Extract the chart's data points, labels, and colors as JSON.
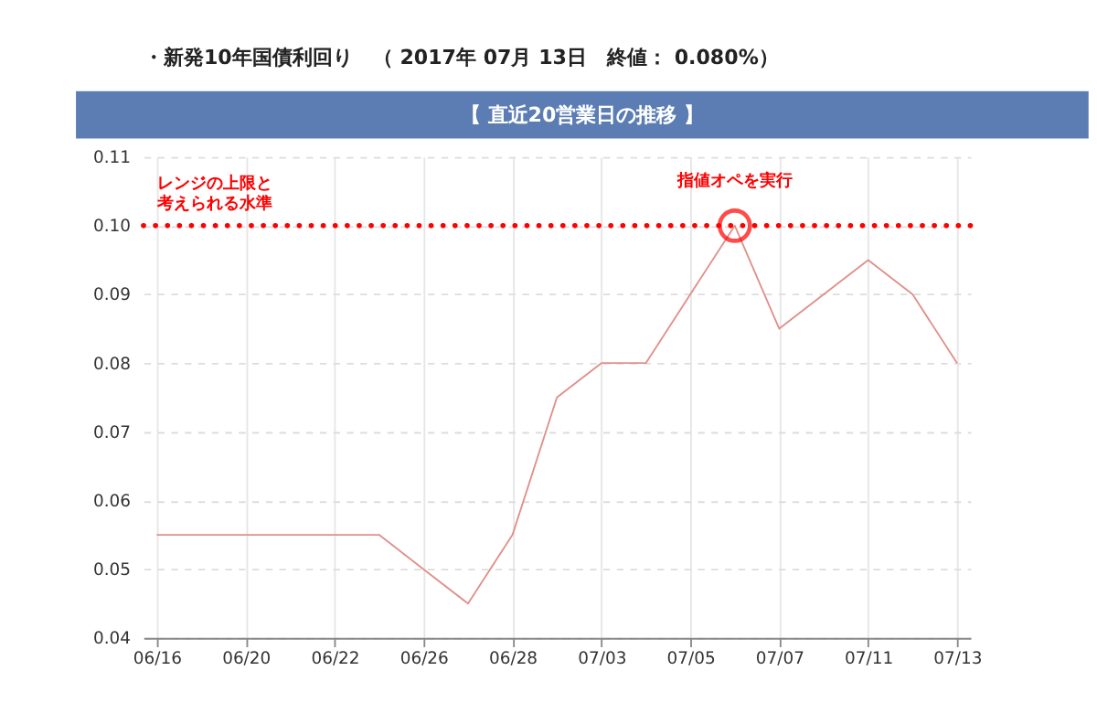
{
  "chart_data": {
    "type": "line",
    "title": "・新発10年国債利回り　（ 2017年 07月 13日　終値： 0.080%）",
    "subtitle": "【 直近20営業日の推移 】",
    "categories": [
      "06/16",
      null,
      "06/20",
      null,
      "06/22",
      null,
      "06/26",
      null,
      "06/28",
      null,
      "07/03",
      null,
      "07/05",
      null,
      "07/07",
      null,
      "07/11",
      null,
      "07/13"
    ],
    "series": [
      {
        "color": "#e0908a",
        "values": [
          0.055,
          0.055,
          0.055,
          0.055,
          0.055,
          0.055,
          0.05,
          0.045,
          0.055,
          0.075,
          0.08,
          0.08,
          0.09,
          0.1,
          0.085,
          0.09,
          0.095,
          0.09,
          0.08
        ]
      }
    ],
    "ylim": [
      0.04,
      0.11
    ],
    "yticks": [
      0.04,
      0.05,
      0.06,
      0.07,
      0.08,
      0.09,
      {
        "value": 0.1,
        "label": "0.10"
      },
      0.11
    ],
    "grid": true,
    "marker": "none",
    "line_style": "solid",
    "ref_lines": [
      {
        "axis": "y",
        "value": 0.1,
        "label": "レンジの上限と考えられる水準",
        "color": "#ff0000",
        "line_style": "dotted"
      }
    ],
    "annotations": [
      {
        "text": "指値オペを実行",
        "y": 0.1
      }
    ]
  }
}
